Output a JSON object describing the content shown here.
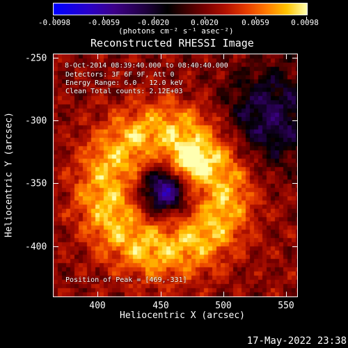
{
  "colorbar": {
    "ticks": [
      "-0.0098",
      "-0.0059",
      "-0.0020",
      "0.0020",
      "0.0059",
      "0.0098"
    ],
    "units": "(photons cm⁻² s⁻¹ asec⁻²)",
    "range": [
      -0.0098,
      0.0098
    ],
    "colors": [
      "#0000ff",
      "#3d0088",
      "#000000",
      "#7a0000",
      "#e63c00",
      "#ffc400",
      "#ffffb0"
    ]
  },
  "plot": {
    "title": "Reconstructed RHESSI Image",
    "annotations": {
      "time_range": "8-Oct-2014 08:39:40.000 to 08:40:40.000",
      "detectors": "Detectors: 3F 6F 9F, Att 0",
      "energy": "Energy Range: 6.0 - 12.0 keV",
      "method": "Clean     Total counts: 2.12E+03",
      "peak": "Position of Peak = [469,-331]"
    },
    "x_axis": {
      "title": "Heliocentric X (arcsec)",
      "ticks": [
        "400",
        "450",
        "500",
        "550"
      ],
      "range": [
        363,
        557
      ]
    },
    "y_axis": {
      "title": "Heliocentric Y (arcsec)",
      "ticks": [
        "-250",
        "-300",
        "-350",
        "-400"
      ],
      "range": [
        -438,
        -245
      ]
    },
    "peak": {
      "x": 469,
      "y": -331
    }
  },
  "footer": {
    "timestamp": "17-May-2022 23:38"
  }
}
